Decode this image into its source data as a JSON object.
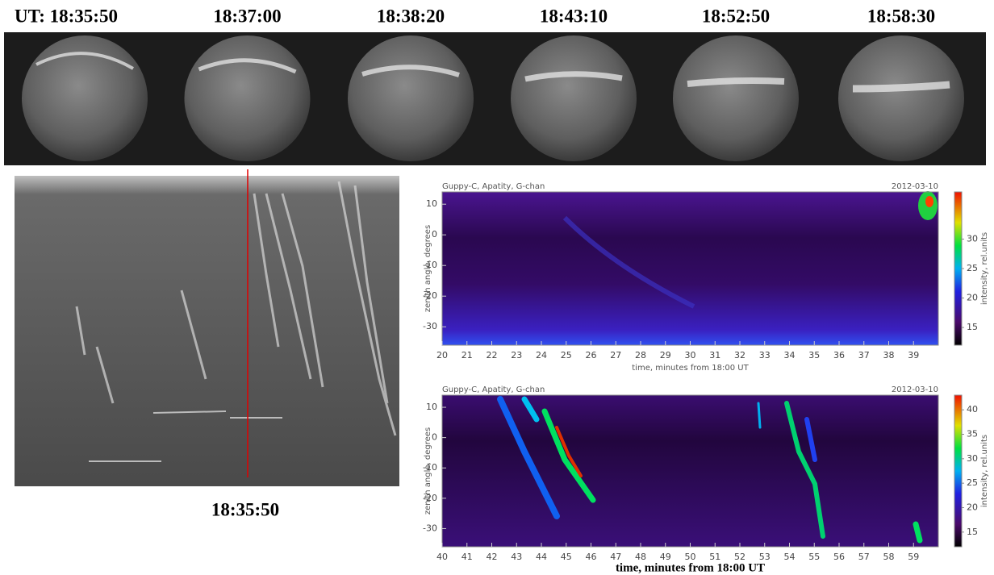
{
  "frames": {
    "times": [
      "UT:  18:35:50",
      "18:37:00",
      "18:38:20",
      "18:43:10",
      "18:52:50",
      "18:58:30"
    ]
  },
  "keogram": {
    "time_label": "18:35:50"
  },
  "chart_data": [
    {
      "type": "heatmap",
      "title": "Guppy-C, Apatity, G-chan",
      "date": "2012-03-10",
      "x_label": "time, minutes from 18:00 UT",
      "y_label": "zenith angle, degrees",
      "colorbar_label": "intensity, rel.units",
      "xlim": [
        20,
        40
      ],
      "xticks": [
        20,
        21,
        22,
        23,
        24,
        25,
        26,
        27,
        28,
        29,
        30,
        31,
        32,
        33,
        34,
        35,
        36,
        37,
        38,
        39
      ],
      "ylim": [
        -36,
        14
      ],
      "yticks": [
        10,
        0,
        -10,
        -20,
        -30
      ],
      "clim": [
        12,
        38
      ],
      "cticks": [
        15,
        20,
        25,
        30
      ]
    },
    {
      "type": "heatmap",
      "title": "Guppy-C, Apatity, G-chan",
      "date": "2012-03-10",
      "x_label": "time, minutes from 18:00 UT",
      "y_label": "zenith angle, degrees",
      "colorbar_label": "intensity, rel.units",
      "xlim": [
        40,
        60
      ],
      "xticks": [
        40,
        41,
        42,
        43,
        44,
        45,
        46,
        47,
        48,
        49,
        50,
        51,
        52,
        53,
        54,
        55,
        56,
        57,
        58,
        59
      ],
      "ylim": [
        -36,
        14
      ],
      "yticks": [
        10,
        0,
        -10,
        -20,
        -30
      ],
      "clim": [
        12,
        43
      ],
      "cticks": [
        15,
        20,
        25,
        30,
        35,
        40
      ]
    }
  ]
}
